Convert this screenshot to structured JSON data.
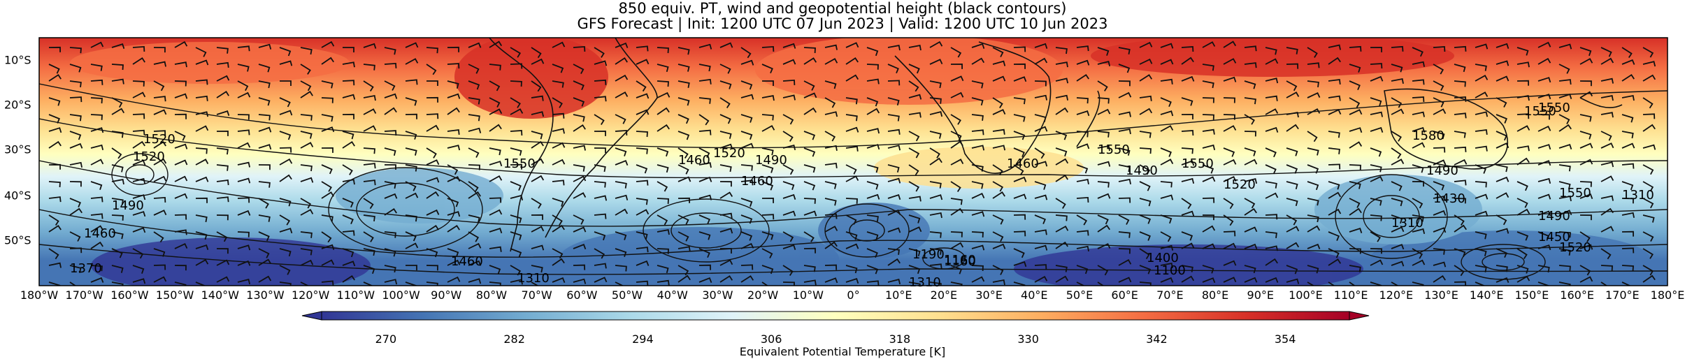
{
  "title": {
    "line1": "850 equiv. PT, wind and geopotential height (black contours)",
    "line2": "GFS Forecast | Init: 1200 UTC 07 Jun 2023 | Valid: 1200 UTC 10 Jun 2023"
  },
  "map": {
    "projection": "PlateCarree",
    "lon_range": [
      -180,
      180
    ],
    "lat_range": [
      -60,
      -5
    ],
    "lon_ticks": [
      "180°W",
      "170°W",
      "160°W",
      "150°W",
      "140°W",
      "130°W",
      "120°W",
      "110°W",
      "100°W",
      "90°W",
      "80°W",
      "70°W",
      "60°W",
      "50°W",
      "40°W",
      "30°W",
      "20°W",
      "10°W",
      "0°",
      "10°E",
      "20°E",
      "30°E",
      "40°E",
      "50°E",
      "60°E",
      "70°E",
      "80°E",
      "90°E",
      "100°E",
      "110°E",
      "120°E",
      "130°E",
      "140°E",
      "150°E",
      "160°E",
      "170°E",
      "180°E"
    ],
    "lat_ticks": [
      "10°S",
      "20°S",
      "30°S",
      "40°S",
      "50°S"
    ],
    "fill_variable": "equivalent potential temperature",
    "contour_variable": "geopotential height",
    "contour_labels": [
      "1520",
      "1550",
      "1580",
      "1550",
      "1520",
      "1490",
      "1460",
      "1370",
      "1310",
      "1550",
      "1520",
      "1490",
      "1460",
      "1550",
      "1520",
      "1490",
      "1460",
      "1430",
      "1550",
      "1490",
      "1310",
      "1160",
      "1190",
      "1160",
      "1100",
      "1400",
      "1490",
      "1310",
      "1550",
      "1520",
      "1450",
      "1310",
      "1460",
      "1460"
    ]
  },
  "colorbar": {
    "ticks": [
      "270",
      "282",
      "294",
      "306",
      "318",
      "330",
      "342",
      "354"
    ],
    "label": "Equivalent Potential Temperature [K]",
    "range": [
      264,
      360
    ],
    "colormap": "RdYlBu_r",
    "colors": [
      "#313695",
      "#4575b4",
      "#74add1",
      "#abd9e9",
      "#e0f3f8",
      "#ffffbf",
      "#fee090",
      "#fdae61",
      "#f46d43",
      "#d73027",
      "#a50026"
    ]
  }
}
